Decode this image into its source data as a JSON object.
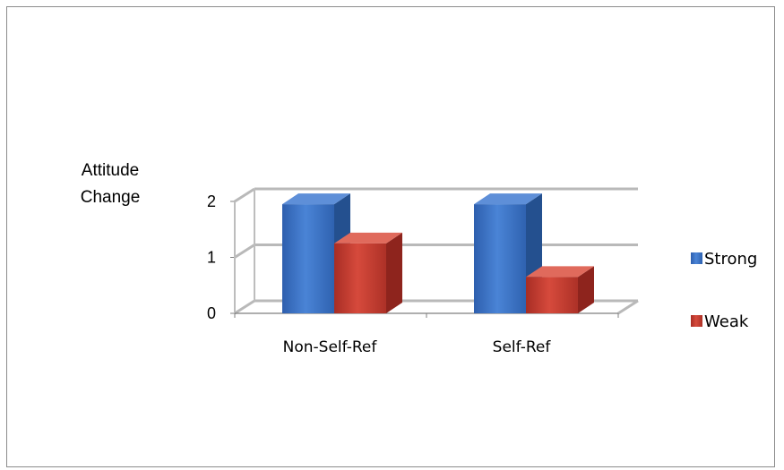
{
  "chart_data": {
    "type": "bar",
    "categories": [
      "Non-Self-Ref",
      "Self-Ref"
    ],
    "series": [
      {
        "name": "Strong",
        "values": [
          1.95,
          1.95
        ],
        "color": "#3a6fc4"
      },
      {
        "name": "Weak",
        "values": [
          1.25,
          0.65
        ],
        "color": "#c0392b"
      }
    ],
    "ylabel": [
      "Attitude",
      "Change"
    ],
    "yticks": [
      0,
      1,
      2
    ],
    "ylim": [
      0,
      2
    ],
    "grid": true,
    "legend": "right",
    "style": "3d-clustered-column"
  }
}
